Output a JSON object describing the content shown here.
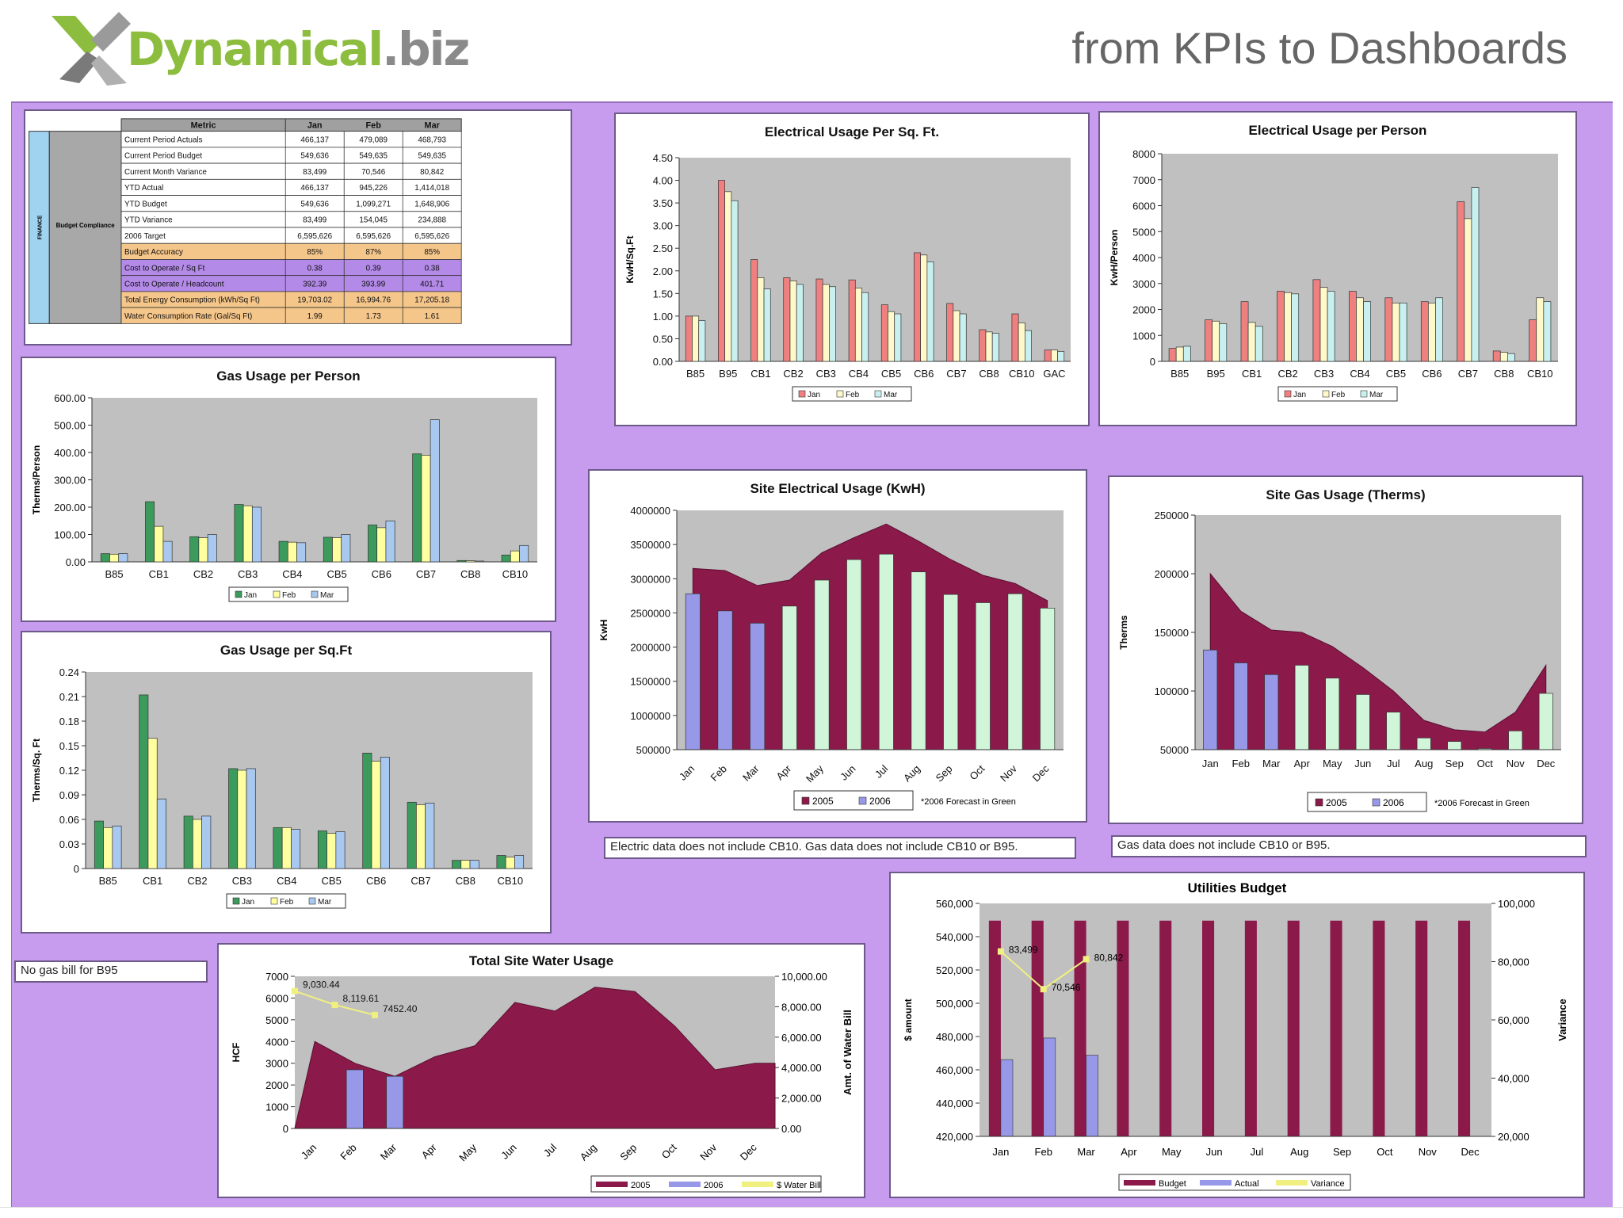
{
  "header": {
    "logo_text_green": "Dynamical",
    "logo_text_grey": ".biz",
    "tagline": "from KPIs to Dashboards"
  },
  "colors": {
    "jan": "#f08080",
    "feb": "#fff8c8",
    "mar": "#c8f0f0",
    "gjan": "#3c9a5c",
    "gfeb": "#ffffa0",
    "gmar": "#a8c8f0",
    "y2005": "#8b1a4a",
    "y2006": "#9898e8",
    "forecast": "#d0f5d8",
    "plot_bg": "#c0c0c0",
    "board_bg": "#c79bee",
    "budget": "#8b1a4a",
    "actual": "#9898e8",
    "variance": "#f0f080"
  },
  "kpi_table": {
    "columns": [
      "Metric",
      "Jan",
      "Feb",
      "Mar"
    ],
    "group_label": "FINANCE",
    "subgroup_label": "Budget Compliance",
    "rows": [
      {
        "metric": "Current Period Actuals",
        "values": [
          "466,137",
          "479,089",
          "468,793"
        ],
        "fill": "#ffffff"
      },
      {
        "metric": "Current Period Budget",
        "values": [
          "549,636",
          "549,635",
          "549,635"
        ],
        "fill": "#ffffff"
      },
      {
        "metric": "Current Month Variance",
        "values": [
          "83,499",
          "70,546",
          "80,842"
        ],
        "fill": "#ffffff"
      },
      {
        "metric": "YTD Actual",
        "values": [
          "466,137",
          "945,226",
          "1,414,018"
        ],
        "fill": "#ffffff"
      },
      {
        "metric": "YTD Budget",
        "values": [
          "549,636",
          "1,099,271",
          "1,648,906"
        ],
        "fill": "#ffffff"
      },
      {
        "metric": "YTD Variance",
        "values": [
          "83,499",
          "154,045",
          "234,888"
        ],
        "fill": "#ffffff"
      },
      {
        "metric": "2006 Target",
        "values": [
          "6,595,626",
          "6,595,626",
          "6,595,626"
        ],
        "fill": "#ffffff"
      },
      {
        "metric": "Budget Accuracy",
        "values": [
          "85%",
          "87%",
          "85%"
        ],
        "fill": "#f5c68a"
      },
      {
        "metric": "Cost to Operate / Sq Ft",
        "values": [
          "0.38",
          "0.39",
          "0.38"
        ],
        "fill": "#b38ae8"
      },
      {
        "metric": "Cost to Operate / Headcount",
        "values": [
          "392.39",
          "393.99",
          "401.71"
        ],
        "fill": "#b38ae8"
      },
      {
        "metric": "Total Energy Consumption (kWh/Sq Ft)",
        "values": [
          "19,703.02",
          "16,994.76",
          "17,205.18"
        ],
        "fill": "#f5c68a"
      },
      {
        "metric": "Water Consumption Rate (Gal/Sq Ft)",
        "values": [
          "1.99",
          "1.73",
          "1.61"
        ],
        "fill": "#f5c68a"
      }
    ]
  },
  "notes": {
    "electric_note": "Electric data does not include CB10. Gas data does not include CB10 or B95.",
    "gas_note": "Gas data does not include CB10 or B95.",
    "b95_note": "No gas bill for B95"
  },
  "chart_data": [
    {
      "id": "elec-sqft",
      "type": "bar",
      "title": "Electrical Usage Per Sq. Ft.",
      "ylabel": "KwH/Sq.Ft",
      "categories": [
        "B85",
        "B95",
        "CB1",
        "CB2",
        "CB3",
        "CB4",
        "CB5",
        "CB6",
        "CB7",
        "CB8",
        "CB10",
        "GAC"
      ],
      "series": [
        {
          "name": "Jan",
          "values": [
            1.0,
            4.0,
            2.25,
            1.85,
            1.82,
            1.8,
            1.25,
            2.4,
            1.28,
            0.7,
            1.05,
            0.25
          ]
        },
        {
          "name": "Feb",
          "values": [
            1.0,
            3.75,
            1.85,
            1.78,
            1.7,
            1.62,
            1.1,
            2.35,
            1.12,
            0.65,
            0.85,
            0.25
          ]
        },
        {
          "name": "Mar",
          "values": [
            0.9,
            3.55,
            1.6,
            1.7,
            1.65,
            1.52,
            1.05,
            2.2,
            1.05,
            0.62,
            0.68,
            0.22
          ]
        }
      ],
      "ylim": [
        0,
        4.5
      ],
      "yticks": [
        "0.00",
        "0.50",
        "1.00",
        "1.50",
        "2.00",
        "2.50",
        "3.00",
        "3.50",
        "4.00",
        "4.50"
      ],
      "legend": "bottom"
    },
    {
      "id": "elec-person",
      "type": "bar",
      "title": "Electrical Usage per Person",
      "ylabel": "KwH/Person",
      "categories": [
        "B85",
        "B95",
        "CB1",
        "CB2",
        "CB3",
        "CB4",
        "CB5",
        "CB6",
        "CB7",
        "CB8",
        "CB10"
      ],
      "series": [
        {
          "name": "Jan",
          "values": [
            500,
            1600,
            2300,
            2700,
            3150,
            2700,
            2450,
            2300,
            6150,
            400,
            1600
          ]
        },
        {
          "name": "Feb",
          "values": [
            550,
            1550,
            1500,
            2650,
            2850,
            2450,
            2250,
            2250,
            5500,
            350,
            2450
          ]
        },
        {
          "name": "Mar",
          "values": [
            580,
            1450,
            1350,
            2600,
            2700,
            2300,
            2250,
            2450,
            6700,
            300,
            2300
          ]
        }
      ],
      "ylim": [
        0,
        8000
      ],
      "yticks": [
        "0",
        "1000",
        "2000",
        "3000",
        "4000",
        "5000",
        "6000",
        "7000",
        "8000"
      ],
      "legend": "bottom"
    },
    {
      "id": "gas-person",
      "type": "bar",
      "title": "Gas Usage per Person",
      "ylabel": "Therms/Person",
      "categories": [
        "B85",
        "CB1",
        "CB2",
        "CB3",
        "CB4",
        "CB5",
        "CB6",
        "CB7",
        "CB8",
        "CB10"
      ],
      "series": [
        {
          "name": "Jan",
          "values": [
            30,
            220,
            92,
            210,
            75,
            90,
            135,
            395,
            5,
            25
          ]
        },
        {
          "name": "Feb",
          "values": [
            28,
            130,
            88,
            205,
            72,
            88,
            125,
            390,
            4,
            40
          ]
        },
        {
          "name": "Mar",
          "values": [
            30,
            75,
            100,
            200,
            70,
            100,
            150,
            520,
            3,
            60
          ]
        }
      ],
      "ylim": [
        0,
        600
      ],
      "yticks": [
        "0.00",
        "100.00",
        "200.00",
        "300.00",
        "400.00",
        "500.00",
        "600.00"
      ],
      "legend": "bottom"
    },
    {
      "id": "gas-sqft",
      "type": "bar",
      "title": "Gas Usage per Sq.Ft",
      "ylabel": "Therms/Sq. Ft",
      "categories": [
        "B85",
        "CB1",
        "CB2",
        "CB3",
        "CB4",
        "CB5",
        "CB6",
        "CB7",
        "CB8",
        "CB10"
      ],
      "series": [
        {
          "name": "Jan",
          "values": [
            0.058,
            0.212,
            0.064,
            0.122,
            0.05,
            0.046,
            0.141,
            0.081,
            0.01,
            0.016
          ]
        },
        {
          "name": "Feb",
          "values": [
            0.05,
            0.159,
            0.06,
            0.12,
            0.05,
            0.043,
            0.131,
            0.078,
            0.01,
            0.014
          ]
        },
        {
          "name": "Mar",
          "values": [
            0.052,
            0.085,
            0.064,
            0.122,
            0.048,
            0.045,
            0.136,
            0.08,
            0.01,
            0.016
          ]
        }
      ],
      "ylim": [
        0,
        0.24
      ],
      "yticks": [
        "0",
        "0.03",
        "0.06",
        "0.09",
        "0.12",
        "0.15",
        "0.18",
        "0.21",
        "0.24"
      ],
      "legend": "bottom"
    },
    {
      "id": "site-elec",
      "type": "bar",
      "title": "Site Electrical Usage (KwH)",
      "ylabel": "KwH",
      "categories": [
        "Jan",
        "Feb",
        "Mar",
        "Apr",
        "May",
        "Jun",
        "Jul",
        "Aug",
        "Sep",
        "Oct",
        "Nov",
        "Dec"
      ],
      "area_2005": [
        3150000,
        3120000,
        2900000,
        2980000,
        3380000,
        3600000,
        3800000,
        3550000,
        3280000,
        3050000,
        2930000,
        2680000
      ],
      "series": [
        {
          "name": "2005",
          "values": [
            3150000,
            3120000,
            2900000,
            2980000,
            3380000,
            3600000,
            3800000,
            3550000,
            3280000,
            3050000,
            2930000,
            2680000
          ]
        },
        {
          "name": "2006",
          "values": [
            2780000,
            2530000,
            2350000,
            2600000,
            2980000,
            3280000,
            3360000,
            3100000,
            2770000,
            2650000,
            2780000,
            2570000
          ]
        }
      ],
      "actual_count": 3,
      "ylim": [
        500000,
        4000000
      ],
      "yticks": [
        "500000",
        "1000000",
        "1500000",
        "2000000",
        "2500000",
        "3000000",
        "3500000",
        "4000000"
      ],
      "legend_items": [
        "2005",
        "2006"
      ],
      "legend_note": "*2006 Forecast in Green"
    },
    {
      "id": "site-gas",
      "type": "bar",
      "title": "Site Gas Usage (Therms)",
      "ylabel": "Therms",
      "categories": [
        "Jan",
        "Feb",
        "Mar",
        "Apr",
        "May",
        "Jun",
        "Jul",
        "Aug",
        "Sep",
        "Oct",
        "Nov",
        "Dec"
      ],
      "series": [
        {
          "name": "2005",
          "values": [
            200000,
            168000,
            152000,
            150000,
            138000,
            120000,
            100000,
            75000,
            67000,
            65000,
            82000,
            122000
          ]
        },
        {
          "name": "2006",
          "values": [
            135000,
            124000,
            114000,
            122000,
            111000,
            97000,
            82000,
            60000,
            57000,
            51000,
            66000,
            98000
          ]
        }
      ],
      "actual_count": 3,
      "ylim": [
        50000,
        250000
      ],
      "yticks": [
        "50000",
        "100000",
        "150000",
        "200000",
        "250000"
      ],
      "legend_items": [
        "2005",
        "2006"
      ],
      "legend_note": "*2006 Forecast in Green"
    },
    {
      "id": "water",
      "type": "bar",
      "title": "Total Site Water Usage",
      "ylabel": "HCF",
      "y2label": "Amt. of Water Bill",
      "categories": [
        "Jan",
        "Feb",
        "Mar",
        "Apr",
        "May",
        "Jun",
        "Jul",
        "Aug",
        "Sep",
        "Oct",
        "Nov",
        "Dec"
      ],
      "series": [
        {
          "name": "2005",
          "values": [
            4000,
            3000,
            2400,
            3300,
            3800,
            5800,
            5400,
            6500,
            6300,
            4700,
            2700,
            3000
          ]
        },
        {
          "name": "2006",
          "values": [
            null,
            2700,
            2400,
            null,
            null,
            null,
            null,
            null,
            null,
            null,
            null,
            null
          ]
        },
        {
          "name": "$ Water Bill",
          "values": [
            9030.44,
            8119.61,
            7452.4,
            null,
            null,
            null,
            null,
            null,
            null,
            null,
            null,
            null
          ],
          "axis": "right"
        }
      ],
      "bill_labels": [
        "9,030.44",
        "8,119.61",
        "7452.40"
      ],
      "ylim": [
        0,
        7000
      ],
      "y2lim": [
        0,
        10000
      ],
      "yticks": [
        "0",
        "1000",
        "2000",
        "3000",
        "4000",
        "5000",
        "6000",
        "7000"
      ],
      "y2ticks": [
        "0.00",
        "2,000.00",
        "4,000.00",
        "6,000.00",
        "8,000.00",
        "10,000.00"
      ],
      "legend_items": [
        "2005",
        "2006",
        "$ Water Bill"
      ]
    },
    {
      "id": "budget",
      "type": "bar",
      "title": "Utilities Budget",
      "ylabel": "$ amount",
      "y2label": "Variance",
      "categories": [
        "Jan",
        "Feb",
        "Mar",
        "Apr",
        "May",
        "Jun",
        "Jul",
        "Aug",
        "Sep",
        "Oct",
        "Nov",
        "Dec"
      ],
      "series": [
        {
          "name": "Budget",
          "values": [
            549636,
            549635,
            549635,
            549635,
            549635,
            549635,
            549635,
            549635,
            549635,
            549635,
            549635,
            549635
          ]
        },
        {
          "name": "Actual",
          "values": [
            466137,
            479089,
            468793,
            null,
            null,
            null,
            null,
            null,
            null,
            null,
            null,
            null
          ]
        },
        {
          "name": "Variance",
          "values": [
            83499,
            70546,
            80842,
            null,
            null,
            null,
            null,
            null,
            null,
            null,
            null,
            null
          ],
          "axis": "right"
        }
      ],
      "variance_labels": [
        "83,499",
        "70,546",
        "80,842"
      ],
      "ylim": [
        420000,
        560000
      ],
      "y2lim": [
        20000,
        100000
      ],
      "yticks": [
        "420,000",
        "440,000",
        "460,000",
        "480,000",
        "500,000",
        "520,000",
        "540,000",
        "560,000"
      ],
      "y2ticks": [
        "20,000",
        "40,000",
        "60,000",
        "80,000",
        "100,000"
      ],
      "legend_items": [
        "Budget",
        "Actual",
        "Variance"
      ]
    }
  ]
}
